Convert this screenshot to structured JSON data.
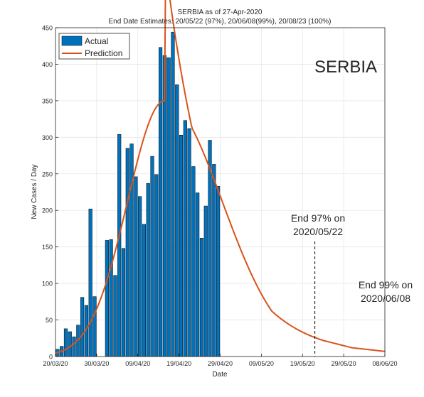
{
  "chart_data": {
    "type": "bar",
    "title": "SERBIA as of 27-Apr-2020",
    "subtitle": "End Date Estimates: 20/05/22 (97%), 20/06/08(99%), 20/08/23 (100%)",
    "xlabel": "Date",
    "ylabel": "New Cases / Day",
    "x_start": "2020-03-20",
    "xlim_days": [
      0,
      80
    ],
    "ylim": [
      0,
      450
    ],
    "y_ticks": [
      0,
      50,
      100,
      150,
      200,
      250,
      300,
      350,
      400,
      450
    ],
    "x_ticks": [
      "20/03/20",
      "30/03/20",
      "09/04/20",
      "19/04/20",
      "29/04/20",
      "09/05/20",
      "19/05/20",
      "29/05/20",
      "08/06/20"
    ],
    "grid": true,
    "legend": {
      "position": "top-left",
      "entries": [
        "Actual",
        "Prediction"
      ]
    },
    "country_label": "SERBIA",
    "colors": {
      "actual": "#0072BD",
      "prediction": "#D95319"
    },
    "series": [
      {
        "name": "Actual",
        "type": "bar",
        "start_date": "2020-03-20",
        "values": [
          10,
          14,
          38,
          34,
          27,
          43,
          81,
          70,
          202,
          82,
          0,
          0,
          159,
          160,
          111,
          304,
          148,
          285,
          291,
          246,
          219,
          181,
          237,
          274,
          249,
          423,
          412,
          409,
          444,
          372,
          303,
          323,
          312,
          260,
          224,
          162,
          206,
          296,
          263,
          233
        ]
      },
      {
        "name": "Prediction",
        "type": "line",
        "peak_day": 26.5,
        "peak_value": 350,
        "sigma_left": 9,
        "sigma_right": 14,
        "tail": [
          [
            65,
            22
          ],
          [
            72,
            12
          ],
          [
            80,
            7
          ]
        ]
      }
    ],
    "annotations": [
      {
        "line1": "End 97% on",
        "line2": "2020/05/22",
        "day": 63,
        "dashed": true
      },
      {
        "line1": "End 99% on",
        "line2": "2020/06/08",
        "day": 80,
        "dashed": false
      }
    ]
  }
}
